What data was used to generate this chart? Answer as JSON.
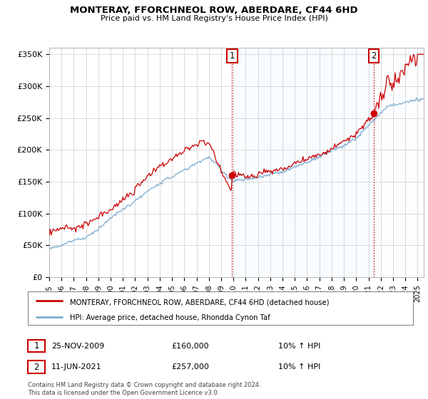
{
  "title": "MONTERAY, FFORCHNEOL ROW, ABERDARE, CF44 6HD",
  "subtitle": "Price paid vs. HM Land Registry's House Price Index (HPI)",
  "ylim": [
    0,
    360000
  ],
  "yticks": [
    0,
    50000,
    100000,
    150000,
    200000,
    250000,
    300000,
    350000
  ],
  "ytick_labels": [
    "£0",
    "£50K",
    "£100K",
    "£150K",
    "£200K",
    "£250K",
    "£300K",
    "£350K"
  ],
  "xlim_start": 1995.0,
  "xlim_end": 2025.5,
  "sale1_x": 2009.9,
  "sale1_y": 160000,
  "sale1_label": "1",
  "sale1_date": "25-NOV-2009",
  "sale1_price": "£160,000",
  "sale1_hpi": "10% ↑ HPI",
  "sale2_x": 2021.44,
  "sale2_y": 257000,
  "sale2_label": "2",
  "sale2_date": "11-JUN-2021",
  "sale2_price": "£257,000",
  "sale2_hpi": "10% ↑ HPI",
  "red_color": "#cc0000",
  "blue_color": "#7aaacc",
  "fill_color": "#ddeeff",
  "grid_color": "#cccccc",
  "legend_line1": "MONTERAY, FFORCHNEOL ROW, ABERDARE, CF44 6HD (detached house)",
  "legend_line2": "HPI: Average price, detached house, Rhondda Cynon Taf",
  "footnote": "Contains HM Land Registry data © Crown copyright and database right 2024.\nThis data is licensed under the Open Government Licence v3.0."
}
